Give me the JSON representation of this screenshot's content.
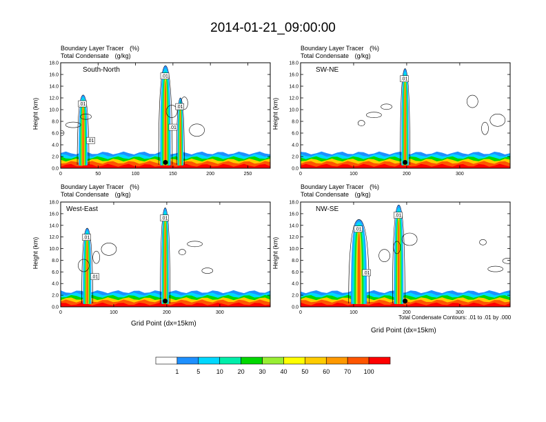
{
  "title": "2014-01-21_09:00:00",
  "colorbar": {
    "levels": [
      1,
      5,
      10,
      20,
      30,
      40,
      50,
      60,
      70,
      100
    ],
    "labels": [
      "1",
      "5",
      "10",
      "20",
      "30",
      "40",
      "50",
      "60",
      "70",
      "100"
    ],
    "colors": [
      "#ffffff",
      "#1e90ff",
      "#00d8ff",
      "#00eeaa",
      "#00d800",
      "#99ee33",
      "#ffff00",
      "#ffcc00",
      "#ff9900",
      "#ff5500",
      "#ff0000"
    ]
  },
  "footer": {
    "contour_note": "Total Condensate Contours: .01 to .01 by .000",
    "xlabel_left": "Grid Point (dx=15km)",
    "xlabel_right": "Grid Point (dx=15km)"
  },
  "chart_data": [
    {
      "type": "heatmap",
      "panel": "South-North",
      "subtitle_line1": "Boundary Layer Tracer",
      "subtitle_unit1": "(%)",
      "subtitle_line2": "Total Condensate",
      "subtitle_unit2": "(g/kg)",
      "ylabel": "Height (km)",
      "xlabel": "",
      "xlim": [
        0,
        280
      ],
      "ylim": [
        0,
        18
      ],
      "xticks": [
        0,
        50,
        100,
        150,
        200,
        250
      ],
      "yticks": [
        0,
        2,
        4,
        6,
        8,
        10,
        12,
        14,
        16,
        18
      ],
      "marker_x": 140,
      "contour_labels": [
        ".01",
        ".01",
        ".01",
        ".01",
        ".01"
      ],
      "plumes": [
        {
          "x": 30,
          "top": 12.5,
          "width": 12
        },
        {
          "x": 140,
          "top": 17.5,
          "width": 14
        },
        {
          "x": 160,
          "top": 12.0,
          "width": 8
        }
      ]
    },
    {
      "type": "heatmap",
      "panel": "SW-NE",
      "subtitle_line1": "Boundary Layer Tracer",
      "subtitle_unit1": "(%)",
      "subtitle_line2": "Total Condensate",
      "subtitle_unit2": "(g/kg)",
      "ylabel": "Height (km)",
      "xlabel": "",
      "xlim": [
        0,
        395
      ],
      "ylim": [
        0,
        18
      ],
      "xticks": [
        0,
        100,
        200,
        300
      ],
      "yticks": [
        0,
        2,
        4,
        6,
        8,
        10,
        12,
        14,
        16,
        18
      ],
      "marker_x": 197,
      "contour_labels": [
        ".01"
      ],
      "plumes": [
        {
          "x": 197,
          "top": 17.0,
          "width": 14
        }
      ]
    },
    {
      "type": "heatmap",
      "panel": "West-East",
      "subtitle_line1": "Boundary Layer Tracer",
      "subtitle_unit1": "(%)",
      "subtitle_line2": "Total Condensate",
      "subtitle_unit2": "(g/kg)",
      "ylabel": "Height (km)",
      "xlabel": "Grid Point (dx=15km)",
      "xlim": [
        0,
        395
      ],
      "ylim": [
        0,
        18
      ],
      "xticks": [
        0,
        100,
        200,
        300
      ],
      "yticks": [
        0,
        2,
        4,
        6,
        8,
        10,
        12,
        14,
        16,
        18
      ],
      "marker_x": 197,
      "contour_labels": [
        ".01",
        ".01",
        ".01"
      ],
      "plumes": [
        {
          "x": 50,
          "top": 13.5,
          "width": 16
        },
        {
          "x": 197,
          "top": 17.0,
          "width": 14
        }
      ]
    },
    {
      "type": "heatmap",
      "panel": "NW-SE",
      "subtitle_line1": "Boundary Layer Tracer",
      "subtitle_unit1": "(%)",
      "subtitle_line2": "Total Condensate",
      "subtitle_unit2": "(g/kg)",
      "ylabel": "Height (km)",
      "xlabel": "Grid Point (dx=15km)",
      "xlim": [
        0,
        395
      ],
      "ylim": [
        0,
        18
      ],
      "xticks": [
        0,
        100,
        200,
        300
      ],
      "yticks": [
        0,
        2,
        4,
        6,
        8,
        10,
        12,
        14,
        16,
        18
      ],
      "marker_x": 197,
      "contour_labels": [
        ".01",
        ".01",
        ".01"
      ],
      "plumes": [
        {
          "x": 110,
          "top": 15.0,
          "width": 30
        },
        {
          "x": 185,
          "top": 17.5,
          "width": 18
        }
      ]
    }
  ]
}
